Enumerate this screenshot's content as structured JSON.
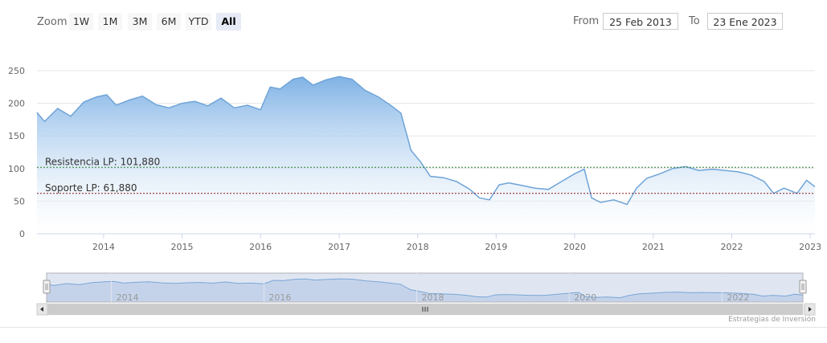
{
  "toolbar": {
    "zoom_label": "Zoom",
    "zoom_buttons": [
      "1W",
      "1M",
      "3M",
      "6M",
      "YTD",
      "All"
    ],
    "active_zoom": "All",
    "from_label": "From",
    "from_value": "25 Feb 2013",
    "to_label": "To",
    "to_value": "23 Ene 2023"
  },
  "credit": "Estrategias de Inversión",
  "colors": {
    "area_top": "#7fb2e5",
    "area_bottom": "#ffffff",
    "line": "#6fa4d8",
    "resistance": "#2e7d32",
    "support": "#8b1a1a",
    "navigator_fill": "#c5d3ea"
  },
  "chart_data": {
    "type": "area",
    "title": "",
    "xlabel": "",
    "ylabel": "",
    "xlim": [
      "2013-02-25",
      "2023-01-23"
    ],
    "ylim": [
      0,
      250
    ],
    "yticks": [
      0,
      50,
      100,
      150,
      200,
      250
    ],
    "xticks": [
      "2014",
      "2015",
      "2016",
      "2017",
      "2018",
      "2019",
      "2020",
      "2021",
      "2022",
      "2023"
    ],
    "navigator_xticks": [
      "2014",
      "2016",
      "2018",
      "2020",
      "2022"
    ],
    "grid": "horizontal",
    "series": [
      {
        "x": [
          "2013-02-25",
          "2013-04-01",
          "2013-06-01",
          "2013-08-01",
          "2013-10-01",
          "2013-12-01",
          "2014-01-15",
          "2014-03-01",
          "2014-05-01",
          "2014-07-01",
          "2014-09-01",
          "2014-11-01",
          "2015-01-01",
          "2015-03-01",
          "2015-05-01",
          "2015-07-01",
          "2015-09-01",
          "2015-11-01",
          "2016-01-01",
          "2016-02-15",
          "2016-04-01",
          "2016-06-01",
          "2016-07-15",
          "2016-09-01",
          "2016-11-01",
          "2017-01-01",
          "2017-03-01",
          "2017-05-01",
          "2017-07-01",
          "2017-09-01",
          "2017-10-15",
          "2017-12-01",
          "2018-01-15",
          "2018-03-01",
          "2018-05-01",
          "2018-07-01",
          "2018-09-01",
          "2018-10-15",
          "2018-12-01",
          "2019-01-15",
          "2019-03-01",
          "2019-05-01",
          "2019-07-01",
          "2019-09-01",
          "2019-11-01",
          "2020-01-01",
          "2020-02-15",
          "2020-03-20",
          "2020-05-01",
          "2020-07-01",
          "2020-09-01",
          "2020-10-15",
          "2020-12-01",
          "2021-02-01",
          "2021-04-01",
          "2021-06-01",
          "2021-08-01",
          "2021-10-01",
          "2021-12-01",
          "2022-02-01",
          "2022-04-01",
          "2022-06-01",
          "2022-07-15",
          "2022-09-01",
          "2022-11-01",
          "2022-12-15",
          "2023-01-23"
        ],
        "values": [
          186,
          172,
          192,
          180,
          202,
          210,
          213,
          197,
          205,
          211,
          198,
          193,
          200,
          203,
          196,
          208,
          193,
          197,
          190,
          225,
          222,
          237,
          240,
          228,
          236,
          241,
          237,
          220,
          210,
          196,
          185,
          128,
          110,
          88,
          86,
          80,
          68,
          55,
          52,
          75,
          78,
          74,
          70,
          68,
          80,
          92,
          99,
          55,
          48,
          52,
          45,
          70,
          85,
          92,
          100,
          103,
          97,
          99,
          97,
          95,
          90,
          80,
          62,
          70,
          62,
          82,
          72
        ]
      }
    ],
    "annotations": [
      {
        "label": "Resistencia LP: 101,880",
        "value": 101.88
      },
      {
        "label": "Soporte LP: 61,880",
        "value": 61.88
      }
    ]
  }
}
